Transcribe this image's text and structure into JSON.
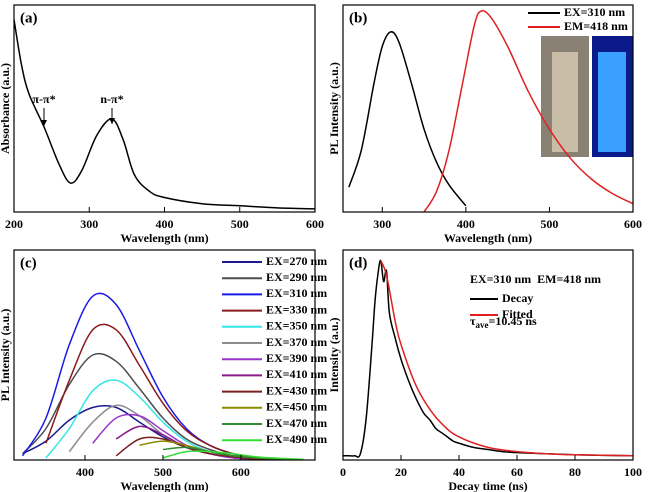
{
  "chart_data": [
    {
      "type": "line",
      "panel_label": "(a)",
      "x_label": "Wavelength (nm)",
      "y_label": "Absorbance (a.u.)",
      "xlim": [
        200,
        600
      ],
      "xticks": [
        200,
        300,
        400,
        500,
        600
      ],
      "ylim": [
        0,
        100
      ],
      "annotations": [
        "π-π*",
        "n-π*"
      ],
      "series": [
        {
          "color": "#000000",
          "x": [
            200,
            210,
            220,
            240,
            260,
            275,
            290,
            310,
            330,
            345,
            360,
            380,
            400,
            450,
            500,
            550,
            600
          ],
          "values": [
            93,
            71,
            57,
            41,
            23,
            14,
            20,
            37,
            45,
            35,
            18,
            10,
            7,
            4,
            3,
            2,
            1.5
          ]
        }
      ]
    },
    {
      "type": "line",
      "panel_label": "(b)",
      "x_label": "Wavelength (nm)",
      "y_label": "PL Intensity (a.u.)",
      "xlim": [
        253,
        600
      ],
      "xticks": [
        300,
        400,
        500,
        600
      ],
      "ylim": [
        0,
        100
      ],
      "series": [
        {
          "name": "EX=310 nm",
          "color": "#000000",
          "x": [
            260,
            275,
            290,
            300,
            310,
            320,
            335,
            350,
            365,
            380,
            400
          ],
          "values": [
            12,
            30,
            62,
            80,
            87,
            82,
            62,
            40,
            24,
            13,
            3
          ]
        },
        {
          "name": "EM=418 nm",
          "color": "#e02020",
          "x": [
            350,
            365,
            380,
            395,
            410,
            418,
            430,
            450,
            475,
            500,
            525,
            550,
            575,
            600
          ],
          "values": [
            0,
            10,
            30,
            60,
            90,
            97,
            94,
            80,
            58,
            40,
            26,
            16,
            9,
            4
          ]
        }
      ]
    },
    {
      "type": "line",
      "panel_label": "(c)",
      "x_label": "Wavelength (nm)",
      "y_label": "PL Intensity (a.u.)",
      "xlim": [
        309,
        695
      ],
      "xticks": [
        400,
        500,
        600
      ],
      "ylim": [
        0,
        100
      ],
      "x": [
        320,
        350,
        380,
        410,
        440,
        470,
        500,
        530,
        560,
        590,
        620,
        650,
        680
      ],
      "series": [
        {
          "name": "EX=270 nm",
          "color": "#1a1a8c",
          "values": [
            3,
            9,
            19,
            25,
            25,
            18,
            11,
            6,
            3,
            1,
            0.5,
            0.3,
            0
          ]
        },
        {
          "name": "EX=290 nm",
          "color": "#4d4d4d",
          "values": [
            3,
            15,
            36,
            50,
            47,
            34,
            20,
            10,
            5,
            2,
            1,
            0.5,
            0
          ]
        },
        {
          "name": "EX=310 nm",
          "color": "#1a1ae6",
          "values": [
            2,
            20,
            55,
            78,
            74,
            52,
            30,
            15,
            7,
            3,
            1,
            0.5,
            0
          ]
        },
        {
          "name": "EX=330 nm",
          "color": "#8b1a1a",
          "values": [
            null,
            8,
            38,
            62,
            62,
            45,
            27,
            14,
            7,
            3,
            1,
            0.5,
            0
          ]
        },
        {
          "name": "EX=350 nm",
          "color": "#33e6e6",
          "values": [
            null,
            1,
            15,
            33,
            38,
            30,
            18,
            9,
            4,
            2,
            1,
            0.5,
            0
          ]
        },
        {
          "name": "EX=370 nm",
          "color": "#8c8c8c",
          "values": [
            null,
            null,
            4,
            18,
            26,
            21,
            12,
            6,
            3,
            1,
            0.5,
            0.3,
            0
          ]
        },
        {
          "name": "EX=390 nm",
          "color": "#9933cc",
          "values": [
            null,
            null,
            null,
            8,
            20,
            21,
            14,
            7,
            3,
            1,
            0.5,
            0.3,
            0
          ]
        },
        {
          "name": "EX=410 nm",
          "color": "#8b1a8b",
          "values": [
            null,
            null,
            null,
            null,
            10,
            16,
            12,
            6,
            3,
            1.5,
            0.5,
            0.3,
            0
          ]
        },
        {
          "name": "EX=430 nm",
          "color": "#7a2020",
          "values": [
            null,
            null,
            null,
            null,
            2,
            10,
            10,
            6,
            3,
            1.5,
            0.5,
            0.3,
            0
          ]
        },
        {
          "name": "EX=450 nm",
          "color": "#8b8b00",
          "values": [
            null,
            null,
            null,
            null,
            null,
            7,
            9,
            7,
            4,
            2,
            1,
            0.5,
            0
          ]
        },
        {
          "name": "EX=470 nm",
          "color": "#2e8b2e",
          "values": [
            null,
            null,
            null,
            null,
            null,
            null,
            5,
            6,
            4,
            2,
            1,
            0.5,
            0
          ]
        },
        {
          "name": "EX=490 nm",
          "color": "#33dd33",
          "values": [
            null,
            null,
            null,
            null,
            null,
            null,
            1,
            4,
            4,
            3,
            1.5,
            0.8,
            0.3
          ]
        }
      ]
    },
    {
      "type": "line",
      "panel_label": "(d)",
      "x_label": "Decay time (ns)",
      "y_label": "Intensity (a.u.)",
      "xlim": [
        0,
        100
      ],
      "xticks": [
        0,
        20,
        40,
        60,
        80,
        100
      ],
      "ylim": [
        0,
        100
      ],
      "annotations": [
        "EX=310 nm  EM=418 nm"
      ],
      "tau_annotation": {
        "symbol": "τ",
        "subscript": "ave",
        "value": "=10.45 ns"
      },
      "series": [
        {
          "name": "Decay",
          "color": "#000000",
          "x": [
            0,
            2,
            4,
            6,
            8,
            10,
            11,
            12,
            13,
            14,
            15,
            16,
            18,
            20,
            22,
            24,
            26,
            28,
            30,
            32,
            34,
            36,
            38,
            40,
            45,
            50,
            55,
            60,
            70,
            80,
            90,
            100
          ],
          "values": [
            2,
            2,
            2,
            3,
            20,
            55,
            75,
            88,
            95,
            85,
            90,
            70,
            58,
            48,
            40,
            33,
            27,
            22,
            19,
            15,
            13,
            11,
            9,
            8,
            6,
            5,
            4,
            3.5,
            3,
            2.5,
            2.2,
            2
          ]
        },
        {
          "name": "Fitted",
          "color": "#e02020",
          "x": [
            13,
            15,
            18,
            20,
            25,
            30,
            35,
            40,
            50,
            60,
            70,
            80,
            100
          ],
          "values": [
            95,
            88,
            66,
            55,
            36,
            24,
            16,
            11,
            6,
            4,
            3,
            2.5,
            2
          ]
        }
      ]
    }
  ]
}
